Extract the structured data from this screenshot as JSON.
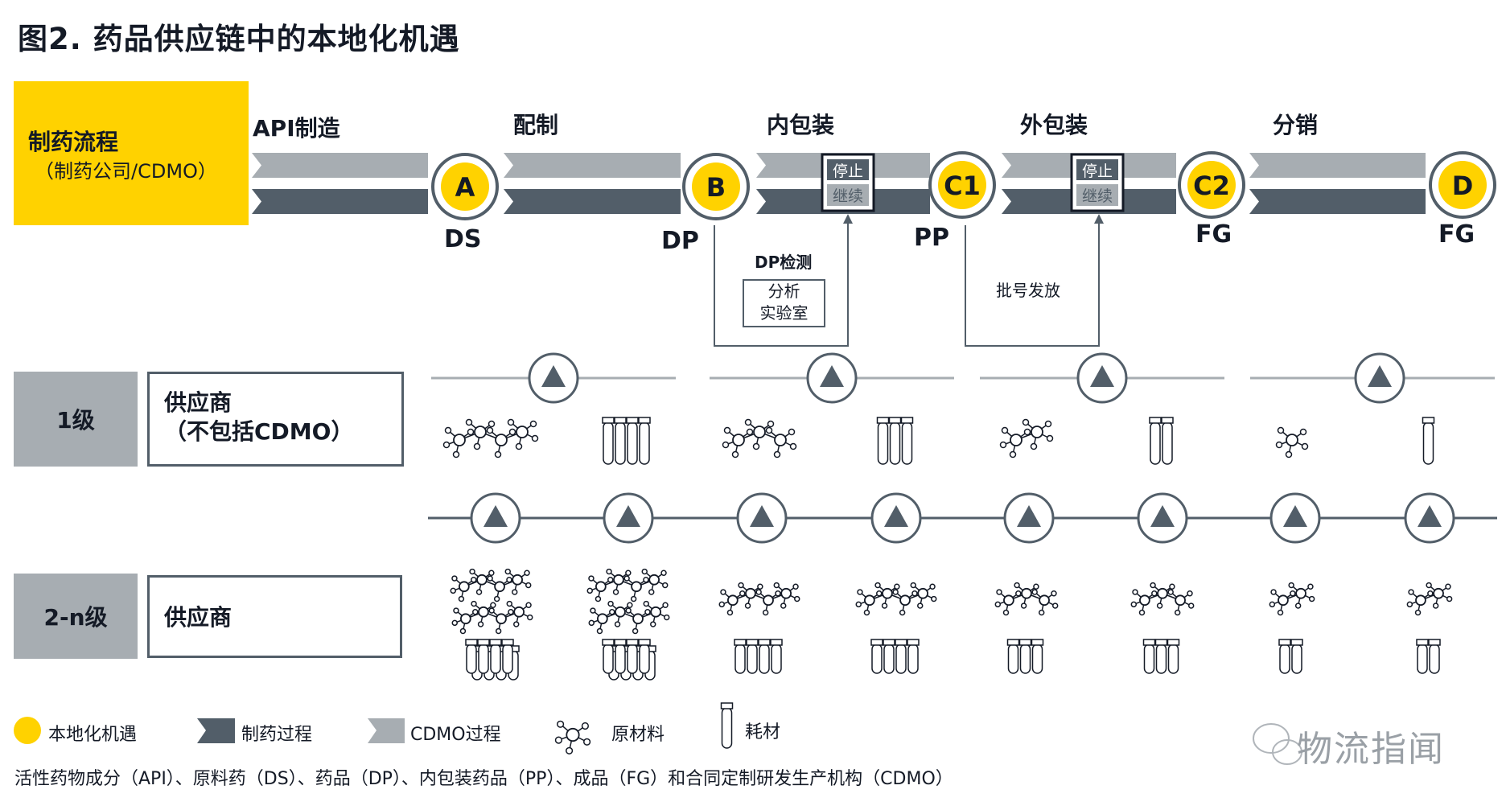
{
  "title": "图2. 药品供应链中的本地化机遇",
  "process": {
    "title": "制药流程",
    "subtitle": "（制药公司/CDMO）"
  },
  "stages": [
    "API制造",
    "配制",
    "内包装",
    "外包装",
    "分销"
  ],
  "nodes": [
    {
      "letter": "A",
      "label": "DS"
    },
    {
      "letter": "B",
      "label": "DP"
    },
    {
      "letter": "C1",
      "label": "PP"
    },
    {
      "letter": "C2",
      "label": "FG"
    },
    {
      "letter": "D",
      "label": "FG"
    }
  ],
  "gates": [
    {
      "stop": "停止",
      "go": "继续"
    },
    {
      "stop": "停止",
      "go": "继续"
    }
  ],
  "loops": [
    {
      "label": "DP检测",
      "box": [
        "分析",
        "实验室"
      ]
    },
    {
      "label": "批号发放"
    }
  ],
  "tiers": [
    {
      "level": "1级",
      "name_line1": "供应商",
      "name_line2": "（不包括CDMO）"
    },
    {
      "level": "2-n级",
      "name_line1": "供应商"
    }
  ],
  "tier1_items": [
    {
      "type": "molecule",
      "hubs": 4
    },
    {
      "type": "tubes",
      "count": 4
    },
    {
      "type": "molecule",
      "hubs": 3
    },
    {
      "type": "tubes",
      "count": 3
    },
    {
      "type": "molecule",
      "hubs": 2
    },
    {
      "type": "tubes",
      "count": 2
    },
    {
      "type": "molecule",
      "hubs": 1
    },
    {
      "type": "tubes",
      "count": 1
    }
  ],
  "tier2_items": [
    {
      "chains": 2,
      "hubs": 4,
      "tubes": 8
    },
    {
      "chains": 2,
      "hubs": 4,
      "tubes": 8
    },
    {
      "chains": 1,
      "hubs": 4,
      "tubes": 4
    },
    {
      "chains": 1,
      "hubs": 4,
      "tubes": 4
    },
    {
      "chains": 1,
      "hubs": 3,
      "tubes": 3
    },
    {
      "chains": 1,
      "hubs": 3,
      "tubes": 3
    },
    {
      "chains": 1,
      "hubs": 2,
      "tubes": 2
    },
    {
      "chains": 1,
      "hubs": 2,
      "tubes": 2
    }
  ],
  "legend": {
    "local": "本地化机遇",
    "pharma": "制药过程",
    "cdmo": "CDMO过程",
    "raw": "原材料",
    "consumable": "耗材"
  },
  "footnote": "活性药物成分（API）、原料药（DS）、药品（DP）、内包装药品（PP）、成品（FG）和合同定制研发生产机构（CDMO）",
  "watermark": "物流指闻",
  "colors": {
    "yellow": "#FFD200",
    "dark": "#525E69",
    "light": "#A7ADB2",
    "text": "#141A26"
  }
}
